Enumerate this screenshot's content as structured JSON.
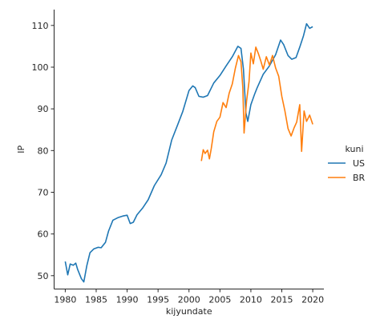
{
  "chart_data": {
    "type": "line",
    "xlabel": "kijyundate",
    "ylabel": "IP",
    "xlim": [
      1978.2,
      2021.8
    ],
    "ylim": [
      46.8,
      113.8
    ],
    "xticks": [
      1980,
      1985,
      1990,
      1995,
      2000,
      2005,
      2010,
      2015,
      2020
    ],
    "yticks": [
      50,
      60,
      70,
      80,
      90,
      100,
      110
    ],
    "grid": false,
    "legend": {
      "title": "kuni",
      "placement": "right",
      "entries": [
        "US",
        "BR"
      ]
    },
    "series": [
      {
        "name": "US",
        "color": "#1f77b4",
        "points": [
          [
            1980.0,
            53.4
          ],
          [
            1980.4,
            50.2
          ],
          [
            1980.8,
            52.8
          ],
          [
            1981.3,
            52.5
          ],
          [
            1981.7,
            53.0
          ],
          [
            1982.0,
            51.5
          ],
          [
            1982.6,
            49.3
          ],
          [
            1983.0,
            48.5
          ],
          [
            1983.5,
            52.5
          ],
          [
            1984.0,
            55.5
          ],
          [
            1984.6,
            56.4
          ],
          [
            1985.3,
            56.8
          ],
          [
            1985.8,
            56.7
          ],
          [
            1986.5,
            58.0
          ],
          [
            1987.0,
            60.7
          ],
          [
            1987.7,
            63.3
          ],
          [
            1988.5,
            63.9
          ],
          [
            1989.3,
            64.3
          ],
          [
            1990.0,
            64.5
          ],
          [
            1990.5,
            62.5
          ],
          [
            1991.0,
            62.8
          ],
          [
            1991.6,
            64.6
          ],
          [
            1992.5,
            66.2
          ],
          [
            1993.4,
            68.2
          ],
          [
            1994.4,
            71.6
          ],
          [
            1995.5,
            74.2
          ],
          [
            1996.3,
            77.0
          ],
          [
            1997.2,
            82.5
          ],
          [
            1998.2,
            86.3
          ],
          [
            1999.0,
            89.4
          ],
          [
            2000.0,
            94.4
          ],
          [
            2000.6,
            95.5
          ],
          [
            2001.0,
            95.1
          ],
          [
            2001.6,
            93.0
          ],
          [
            2002.3,
            92.8
          ],
          [
            2003.0,
            93.2
          ],
          [
            2004.0,
            96.2
          ],
          [
            2005.0,
            98.0
          ],
          [
            2006.0,
            100.3
          ],
          [
            2007.0,
            102.5
          ],
          [
            2007.9,
            105.0
          ],
          [
            2008.4,
            104.5
          ],
          [
            2008.8,
            99.5
          ],
          [
            2009.2,
            89.0
          ],
          [
            2009.5,
            87.0
          ],
          [
            2010.0,
            91.0
          ],
          [
            2010.6,
            93.5
          ],
          [
            2011.0,
            95.0
          ],
          [
            2012.0,
            98.3
          ],
          [
            2013.0,
            100.3
          ],
          [
            2014.0,
            103.0
          ],
          [
            2014.8,
            106.5
          ],
          [
            2015.3,
            105.4
          ],
          [
            2016.0,
            102.8
          ],
          [
            2016.6,
            101.9
          ],
          [
            2017.3,
            102.3
          ],
          [
            2017.9,
            104.8
          ],
          [
            2018.5,
            107.5
          ],
          [
            2019.0,
            110.4
          ],
          [
            2019.5,
            109.3
          ],
          [
            2020.0,
            109.7
          ]
        ]
      },
      {
        "name": "BR",
        "color": "#ff7f0e",
        "points": [
          [
            2002.0,
            77.5
          ],
          [
            2002.3,
            80.2
          ],
          [
            2002.6,
            79.3
          ],
          [
            2003.0,
            80.1
          ],
          [
            2003.3,
            78.0
          ],
          [
            2003.6,
            80.5
          ],
          [
            2004.0,
            84.5
          ],
          [
            2004.5,
            87.0
          ],
          [
            2005.0,
            88.0
          ],
          [
            2005.5,
            91.5
          ],
          [
            2006.0,
            90.3
          ],
          [
            2006.5,
            93.8
          ],
          [
            2007.0,
            96.0
          ],
          [
            2007.5,
            99.8
          ],
          [
            2008.0,
            102.8
          ],
          [
            2008.4,
            101.3
          ],
          [
            2008.7,
            95.0
          ],
          [
            2008.9,
            84.2
          ],
          [
            2009.3,
            91.8
          ],
          [
            2009.7,
            96.5
          ],
          [
            2010.0,
            103.4
          ],
          [
            2010.4,
            100.8
          ],
          [
            2010.8,
            104.8
          ],
          [
            2011.2,
            103.3
          ],
          [
            2011.6,
            101.5
          ],
          [
            2012.0,
            99.5
          ],
          [
            2012.5,
            102.5
          ],
          [
            2013.0,
            100.5
          ],
          [
            2013.5,
            102.8
          ],
          [
            2014.0,
            99.8
          ],
          [
            2014.5,
            97.8
          ],
          [
            2015.0,
            93.0
          ],
          [
            2015.5,
            89.5
          ],
          [
            2016.0,
            85.3
          ],
          [
            2016.5,
            83.5
          ],
          [
            2017.0,
            85.5
          ],
          [
            2017.4,
            86.8
          ],
          [
            2017.9,
            91.0
          ],
          [
            2018.2,
            79.8
          ],
          [
            2018.6,
            89.5
          ],
          [
            2019.0,
            87.0
          ],
          [
            2019.5,
            88.5
          ],
          [
            2020.0,
            86.3
          ]
        ]
      }
    ]
  }
}
